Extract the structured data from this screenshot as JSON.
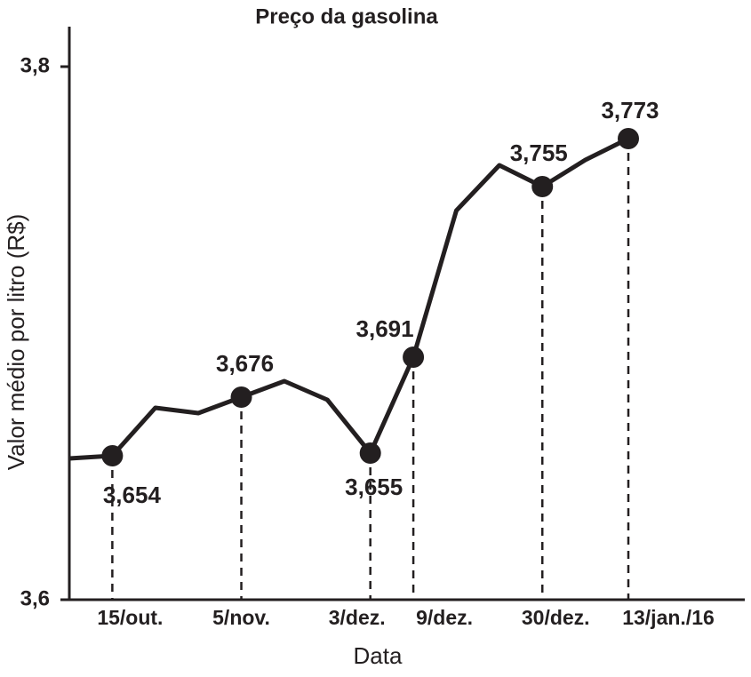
{
  "chart_data": {
    "type": "line",
    "title": "Preço da gasolina",
    "x_label": "Data",
    "y_label": "Valor médio por litro (R$)",
    "categories": [
      null,
      "15/out.",
      null,
      null,
      "5/nov.",
      null,
      null,
      "3/dez.",
      "9/dez.",
      null,
      null,
      "30/dez.",
      null,
      "13/jan./16"
    ],
    "values": [
      3.653,
      3.654,
      3.672,
      3.67,
      3.676,
      3.682,
      3.675,
      3.655,
      3.691,
      3.746,
      3.763,
      3.755,
      3.765,
      3.773
    ],
    "value_labels": [
      null,
      "3,654",
      null,
      null,
      "3,676",
      null,
      null,
      "3,655",
      "3,691",
      null,
      null,
      "3,755",
      null,
      "3,773"
    ],
    "color": "#231f20",
    "ylim": [
      3.6,
      3.815
    ],
    "yticks": [
      {
        "value": 3.6,
        "label": "3,6"
      },
      {
        "value": 3.8,
        "label": "3,8"
      }
    ]
  }
}
